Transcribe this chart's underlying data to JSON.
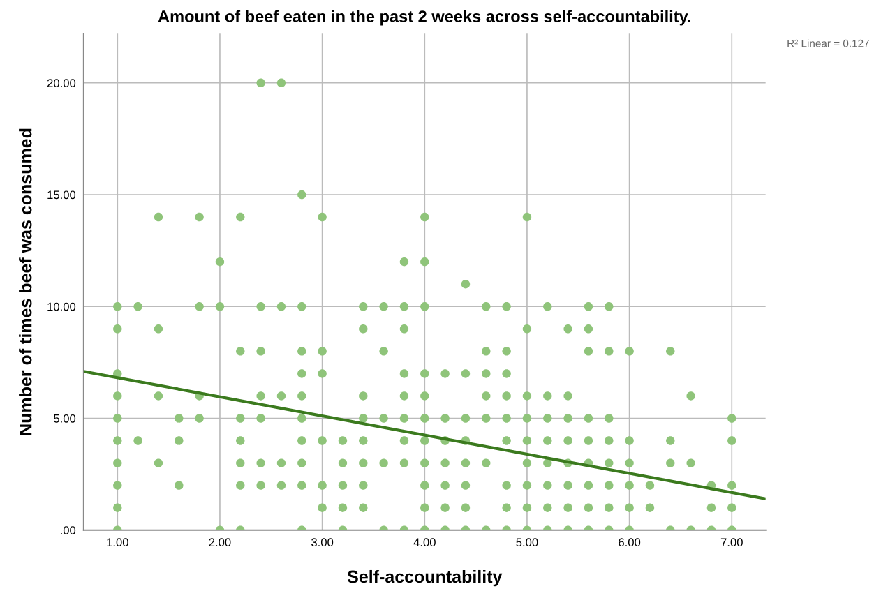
{
  "chart_data": {
    "type": "scatter",
    "title": "Amount of beef eaten in the past 2 weeks across self-accountability.",
    "xlabel": "Self-accountability",
    "ylabel": "Number of times beef was consumed",
    "annotations": [
      "R² Linear = 0.127"
    ],
    "xlim": [
      0.67,
      7.33
    ],
    "ylim": [
      0,
      22.2
    ],
    "xticks": [
      {
        "value": 1,
        "label": "1.00"
      },
      {
        "value": 2,
        "label": "2.00"
      },
      {
        "value": 3,
        "label": "3.00"
      },
      {
        "value": 4,
        "label": "4.00"
      },
      {
        "value": 5,
        "label": "5.00"
      },
      {
        "value": 6,
        "label": "6.00"
      },
      {
        "value": 7,
        "label": "7.00"
      }
    ],
    "yticks": [
      {
        "value": 0,
        "label": ".00"
      },
      {
        "value": 5,
        "label": "5.00"
      },
      {
        "value": 10,
        "label": "10.00"
      },
      {
        "value": 15,
        "label": "15.00"
      },
      {
        "value": 20,
        "label": "20.00"
      }
    ],
    "grid": true,
    "series": [
      {
        "marker": "circle",
        "color": "#8fc47a",
        "x": [
          1,
          1,
          1,
          1,
          1,
          1,
          1,
          1,
          1,
          1,
          1.2,
          1.2,
          1.4,
          1.4,
          1.4,
          1.4,
          1.6,
          1.6,
          1.6,
          1.8,
          1.8,
          1.8,
          1.8,
          2,
          2,
          2,
          2.2,
          2.2,
          2.2,
          2.2,
          2.2,
          2.2,
          2.2,
          2.4,
          2.4,
          2.4,
          2.4,
          2.4,
          2.4,
          2.4,
          2.6,
          2.6,
          2.6,
          2.6,
          2.6,
          2.8,
          2.8,
          2.8,
          2.8,
          2.8,
          2.8,
          2.8,
          2.8,
          2.8,
          2.8,
          3,
          3,
          3,
          3,
          3,
          3,
          3.2,
          3.2,
          3.2,
          3.2,
          3.2,
          3.4,
          3.4,
          3.4,
          3.4,
          3.4,
          3.4,
          3.4,
          3.4,
          3.6,
          3.6,
          3.6,
          3.6,
          3.6,
          3.8,
          3.8,
          3.8,
          3.8,
          3.8,
          3.8,
          3.8,
          3.8,
          3.8,
          4,
          4,
          4,
          4,
          4,
          4,
          4,
          4,
          4,
          4,
          4,
          4.2,
          4.2,
          4.2,
          4.2,
          4.2,
          4.2,
          4.2,
          4.4,
          4.4,
          4.4,
          4.4,
          4.4,
          4.4,
          4.4,
          4.4,
          4.6,
          4.6,
          4.6,
          4.6,
          4.6,
          4.6,
          4.6,
          4.8,
          4.8,
          4.8,
          4.8,
          4.8,
          4.8,
          4.8,
          4.8,
          4.8,
          5,
          5,
          5,
          5,
          5,
          5,
          5,
          5,
          5,
          5.2,
          5.2,
          5.2,
          5.2,
          5.2,
          5.2,
          5.2,
          5.2,
          5.4,
          5.4,
          5.4,
          5.4,
          5.4,
          5.4,
          5.4,
          5.4,
          5.6,
          5.6,
          5.6,
          5.6,
          5.6,
          5.6,
          5.6,
          5.6,
          5.6,
          5.8,
          5.8,
          5.8,
          5.8,
          5.8,
          5.8,
          5.8,
          5.8,
          6,
          6,
          6,
          6,
          6,
          6,
          6.2,
          6.2,
          6.4,
          6.4,
          6.4,
          6.4,
          6.6,
          6.6,
          6.6,
          6.8,
          6.8,
          6.8,
          7,
          7,
          7,
          7,
          7
        ],
        "values": [
          10,
          9,
          7,
          6,
          5,
          4,
          3,
          2,
          1,
          0,
          10,
          4,
          14,
          9,
          6,
          3,
          5,
          4,
          2,
          14,
          10,
          6,
          5,
          12,
          10,
          0,
          14,
          8,
          5,
          4,
          3,
          2,
          0,
          20,
          10,
          8,
          6,
          5,
          3,
          2,
          20,
          10,
          6,
          3,
          2,
          15,
          10,
          8,
          7,
          6,
          5,
          4,
          3,
          2,
          0,
          14,
          8,
          7,
          4,
          2,
          1,
          4,
          3,
          2,
          1,
          0,
          10,
          9,
          6,
          5,
          4,
          3,
          2,
          1,
          10,
          8,
          5,
          3,
          0,
          12,
          10,
          9,
          7,
          6,
          5,
          4,
          3,
          0,
          14,
          12,
          10,
          7,
          6,
          5,
          4,
          3,
          2,
          1,
          0,
          7,
          5,
          4,
          3,
          2,
          1,
          0,
          11,
          7,
          5,
          4,
          3,
          2,
          1,
          0,
          10,
          8,
          7,
          6,
          5,
          3,
          0,
          10,
          8,
          7,
          6,
          5,
          4,
          2,
          1,
          0,
          14,
          9,
          6,
          5,
          4,
          3,
          2,
          1,
          0,
          10,
          6,
          5,
          4,
          3,
          2,
          1,
          0,
          9,
          6,
          5,
          4,
          3,
          2,
          1,
          0,
          10,
          9,
          8,
          5,
          4,
          3,
          2,
          1,
          0,
          10,
          8,
          5,
          4,
          3,
          2,
          1,
          0,
          8,
          4,
          3,
          2,
          1,
          0,
          2,
          1,
          8,
          4,
          3,
          0,
          6,
          3,
          0,
          2,
          1,
          0,
          5,
          4,
          2,
          1,
          0
        ]
      },
      {
        "type": "line",
        "marker": "none",
        "color": "#3b7a1e",
        "x": [
          0.67,
          7.33
        ],
        "values": [
          7.1,
          1.4
        ]
      }
    ]
  }
}
